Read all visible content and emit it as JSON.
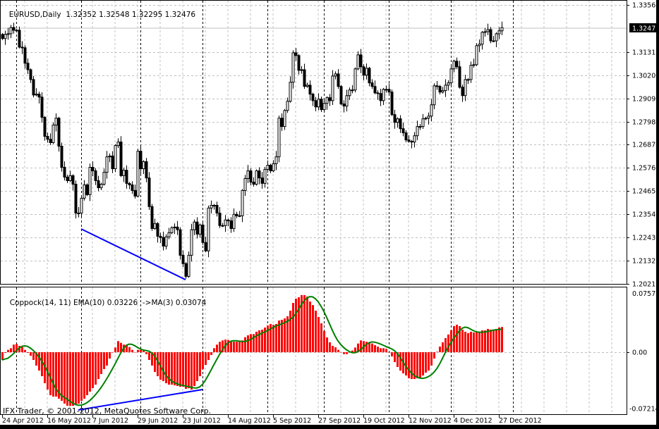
{
  "header": {
    "symbol": "EURUSD,Daily",
    "open": "1.32352",
    "high": "1.32548",
    "low": "1.32295",
    "close": "1.32476"
  },
  "indicator": {
    "label": "Coppock(14, 11) EMA(10)",
    "value": "0.03226",
    "ma_label": "->MA(3)",
    "ma_value": "0.03074",
    "ma_period": 3
  },
  "copyright": "IFX Trader, © 2001-2012, MetaQuotes Software Corp.",
  "current_price_tag": "1.32476",
  "price_axis": [
    "1.33560",
    "1.31310",
    "1.30200",
    "1.29090",
    "1.27980",
    "1.26870",
    "1.25760",
    "1.24650",
    "1.23540",
    "1.22430",
    "1.21320",
    "1.20210"
  ],
  "indicator_axis": [
    "0.07576",
    "0.00",
    "-0.07214"
  ],
  "date_axis": [
    "24 Apr 2012",
    "16 May 2012",
    "7 Jun 2012",
    "29 Jun 2012",
    "23 Jul 2012",
    "14 Aug 2012",
    "5 Sep 2012",
    "27 Sep 2012",
    "19 Oct 2012",
    "12 Nov 2012",
    "4 Dec 2012",
    "27 Dec 2012"
  ],
  "colors": {
    "histogram": "#ff0000",
    "ma_line": "#008000",
    "trendline": "#0000ff",
    "bull_candle": "#ffffff",
    "bear_candle": "#000000",
    "grid": "#c0c0c0"
  },
  "chart_data": [
    {
      "type": "candlestick",
      "title": "EURUSD,Daily",
      "first_date": "2012-04-24",
      "ylim": [
        1.2021,
        1.3356
      ],
      "grid": true,
      "closes": [
        1.3195,
        1.3215,
        1.3218,
        1.3248,
        1.3235,
        1.3235,
        1.3154,
        1.3151,
        1.3077,
        1.3046,
        1.2999,
        1.2925,
        1.2929,
        1.2915,
        1.2818,
        1.2727,
        1.2713,
        1.2697,
        1.2781,
        1.2814,
        1.268,
        1.2579,
        1.2532,
        1.2515,
        1.2539,
        1.2498,
        1.236,
        1.236,
        1.2431,
        1.2495,
        1.2448,
        1.2579,
        1.2562,
        1.2515,
        1.2481,
        1.2498,
        1.2555,
        1.2629,
        1.2633,
        1.2572,
        1.2683,
        1.27,
        1.2539,
        1.2565,
        1.2502,
        1.2495,
        1.2468,
        1.2441,
        1.2656,
        1.2572,
        1.2606,
        1.2528,
        1.2391,
        1.2286,
        1.231,
        1.2249,
        1.2243,
        1.2202,
        1.2246,
        1.2266,
        1.229,
        1.2293,
        1.228,
        1.2158,
        1.2118,
        1.2057,
        1.2158,
        1.228,
        1.2317,
        1.2259,
        1.2303,
        1.2219,
        1.2179,
        1.2384,
        1.2397,
        1.2397,
        1.236,
        1.23,
        1.23,
        1.2327,
        1.2323,
        1.2286,
        1.2354,
        1.2347,
        1.2347,
        1.2468,
        1.2525,
        1.2562,
        1.2508,
        1.2498,
        1.2562,
        1.2528,
        1.2502,
        1.2569,
        1.2589,
        1.2562,
        1.2596,
        1.2629,
        1.2814,
        1.2774,
        1.2851,
        1.2895,
        1.2986,
        1.3127,
        1.3114,
        1.3043,
        1.3046,
        1.2966,
        1.2972,
        1.2929,
        1.2898,
        1.2868,
        1.2905,
        1.2855,
        1.2885,
        1.2912,
        1.2898,
        1.3016,
        1.3026,
        1.2966,
        1.2882,
        1.2872,
        1.2922,
        1.2949,
        1.2949,
        1.305,
        1.3117,
        1.306,
        1.302,
        1.3053,
        1.2983,
        1.2966,
        1.2935,
        1.2932,
        1.2898,
        1.2952,
        1.2952,
        1.2939,
        1.2831,
        1.2794,
        1.2811,
        1.2764,
        1.2744,
        1.271,
        1.2703,
        1.27,
        1.273,
        1.2774,
        1.2774,
        1.2811,
        1.2814,
        1.2824,
        1.2878,
        1.2969,
        1.2966,
        1.2939,
        1.2946,
        1.2972,
        1.2983,
        1.305,
        1.3087,
        1.306,
        1.2962,
        1.2922,
        1.2999,
        1.2999,
        1.3067,
        1.307,
        1.3161,
        1.3168,
        1.3225,
        1.3228,
        1.3238,
        1.3184,
        1.3184,
        1.3218,
        1.3232,
        1.3248
      ],
      "trendline": {
        "from": [
          "2012-06-01",
          1.2284
        ],
        "to": [
          "2012-07-24",
          1.2041
        ]
      }
    },
    {
      "type": "bar",
      "title": "Coppock(14, 11) EMA(10)",
      "ylim": [
        -0.07214,
        0.07576
      ],
      "values": [
        -0.0099,
        -0.0009,
        0.003,
        0.0051,
        0.0097,
        0.0106,
        0.0081,
        0.0066,
        0.003,
        -0.0009,
        -0.0045,
        -0.0099,
        -0.0171,
        -0.0235,
        -0.0307,
        -0.0397,
        -0.0478,
        -0.055,
        -0.0568,
        -0.0568,
        -0.0595,
        -0.0622,
        -0.0658,
        -0.0686,
        -0.0686,
        -0.0686,
        -0.0677,
        -0.0658,
        -0.0622,
        -0.0595,
        -0.055,
        -0.0505,
        -0.046,
        -0.0415,
        -0.0343,
        -0.028,
        -0.0216,
        -0.0171,
        -0.0081,
        0,
        0.006,
        0.0142,
        0.012,
        0.0097,
        0.0097,
        0.0066,
        0.003,
        0,
        0.003,
        0.003,
        0.0021,
        -0.0024,
        -0.0099,
        -0.0171,
        -0.0253,
        -0.0307,
        -0.0352,
        -0.037,
        -0.0397,
        -0.0415,
        -0.0415,
        -0.0424,
        -0.0433,
        -0.0442,
        -0.0442,
        -0.0469,
        -0.046,
        -0.0478,
        -0.0433,
        -0.037,
        -0.0307,
        -0.0216,
        -0.0162,
        -0.0099,
        -0.0036,
        0.0051,
        0.0097,
        0.0133,
        0.0151,
        0.0162,
        0.0156,
        0.0133,
        0.0133,
        0.0133,
        0.0133,
        0.0151,
        0.0192,
        0.0216,
        0.0232,
        0.0232,
        0.0262,
        0.028,
        0.0289,
        0.0316,
        0.0343,
        0.0361,
        0.0352,
        0.0361,
        0.0406,
        0.0415,
        0.0433,
        0.046,
        0.0532,
        0.0631,
        0.0686,
        0.0704,
        0.0731,
        0.0731,
        0.0713,
        0.0649,
        0.0604,
        0.0532,
        0.0451,
        0.037,
        0.0271,
        0.0189,
        0.0126,
        0.0081,
        0.0063,
        0.003,
        0,
        -0.0024,
        -0.0024,
        0,
        0.0021,
        0.006,
        0.0111,
        0.0151,
        0.0142,
        0.0133,
        0.012,
        0.0111,
        0.009,
        0.0072,
        0.0051,
        0.0051,
        0.0042,
        0,
        -0.0054,
        -0.0126,
        -0.0189,
        -0.0235,
        -0.0271,
        -0.0298,
        -0.0334,
        -0.0343,
        -0.0343,
        -0.0334,
        -0.0325,
        -0.0298,
        -0.0262,
        -0.0235,
        -0.0171,
        -0.0081,
        0.0006,
        0.0072,
        0.0126,
        0.018,
        0.0226,
        0.028,
        0.0334,
        0.0352,
        0.0334,
        0.0289,
        0.0262,
        0.0244,
        0.0262,
        0.0253,
        0.0253,
        0.0262,
        0.028,
        0.028,
        0.0298,
        0.0289,
        0.0289,
        0.0298,
        0.0316,
        0.0323
      ],
      "trendline": {
        "from": [
          "2012-05-31",
          -0.074
        ],
        "to": [
          "2012-08-01",
          -0.0478
        ]
      }
    }
  ]
}
